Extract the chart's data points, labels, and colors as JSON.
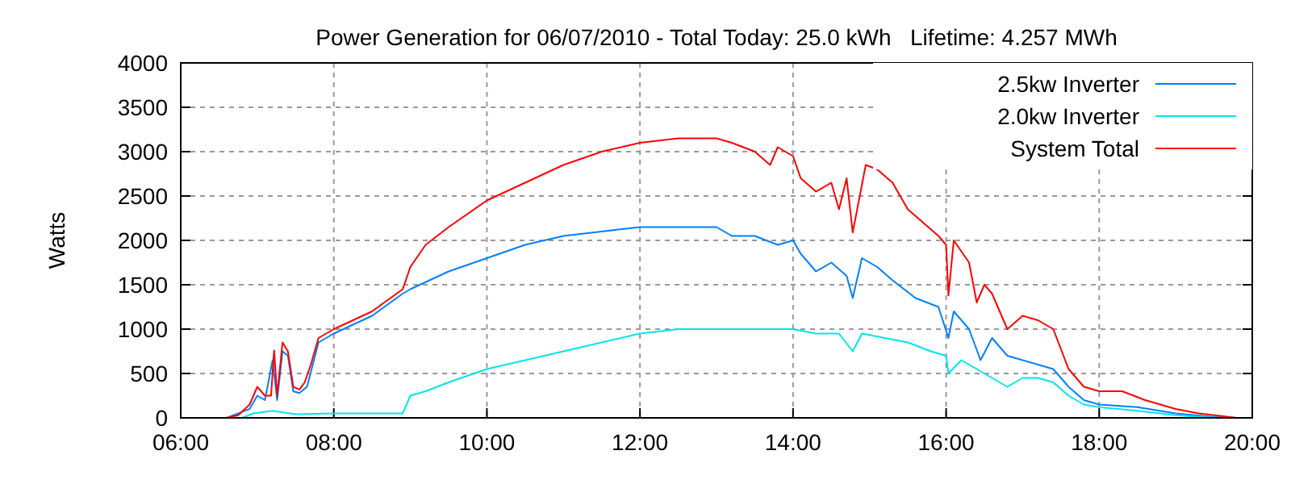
{
  "chart_data": {
    "type": "line",
    "title": "Power Generation for 06/07/2010 - Total Today: 25.0 kWh   Lifetime: 4.257 MWh",
    "ylabel": "Watts",
    "xlim": [
      6,
      20
    ],
    "xticks": [
      {
        "value": 6,
        "label": "06:00"
      },
      {
        "value": 8,
        "label": "08:00"
      },
      {
        "value": 10,
        "label": "10:00"
      },
      {
        "value": 12,
        "label": "12:00"
      },
      {
        "value": 14,
        "label": "14:00"
      },
      {
        "value": 16,
        "label": "16:00"
      },
      {
        "value": 18,
        "label": "18:00"
      },
      {
        "value": 20,
        "label": "20:00"
      }
    ],
    "ylim": [
      0,
      4000
    ],
    "yticks": [
      0,
      500,
      1000,
      1500,
      2000,
      2500,
      3000,
      3500,
      4000
    ],
    "grid": true,
    "legend": "top right",
    "line_style": "solid",
    "marker": "none",
    "series": [
      {
        "name": "2.5kw Inverter",
        "color": "#0080ff",
        "x": [
          6.6,
          6.9,
          7.0,
          7.1,
          7.2,
          7.26,
          7.33,
          7.4,
          7.47,
          7.55,
          7.65,
          7.8,
          8.0,
          8.5,
          8.9,
          9.0,
          9.5,
          10,
          10.5,
          11,
          11.5,
          12,
          12.5,
          13,
          13.2,
          13.5,
          13.8,
          14,
          14.1,
          14.3,
          14.5,
          14.7,
          14.78,
          14.9,
          15.1,
          15.3,
          15.6,
          15.9,
          16.03,
          16.1,
          16.3,
          16.45,
          16.6,
          16.8,
          17.0,
          17.2,
          17.4,
          17.6,
          17.8,
          18.0,
          18.5,
          19.0,
          19.5,
          19.8
        ],
        "values": [
          0,
          100,
          250,
          200,
          650,
          200,
          750,
          700,
          300,
          280,
          350,
          850,
          950,
          1150,
          1400,
          1450,
          1650,
          1800,
          1950,
          2050,
          2100,
          2150,
          2150,
          2150,
          2050,
          2050,
          1950,
          2000,
          1850,
          1650,
          1750,
          1600,
          1350,
          1800,
          1700,
          1550,
          1350,
          1250,
          900,
          1200,
          1000,
          650,
          900,
          700,
          650,
          600,
          550,
          350,
          200,
          150,
          120,
          50,
          10,
          0
        ]
      },
      {
        "name": "2.0kw Inverter",
        "color": "#00e5ee",
        "x": [
          6.8,
          6.95,
          7.2,
          7.5,
          8.0,
          8.9,
          9.0,
          9.2,
          9.5,
          10,
          10.5,
          11,
          11.5,
          12,
          12.5,
          13,
          13.5,
          14,
          14.3,
          14.6,
          14.78,
          14.9,
          15.2,
          15.5,
          15.8,
          16.0,
          16.03,
          16.2,
          16.4,
          16.6,
          16.8,
          17.0,
          17.2,
          17.4,
          17.6,
          17.8,
          18.0,
          18.5,
          19.0,
          19.5
        ],
        "values": [
          0,
          50,
          80,
          40,
          50,
          50,
          250,
          300,
          400,
          550,
          650,
          750,
          850,
          950,
          1000,
          1000,
          1000,
          1000,
          950,
          950,
          750,
          950,
          900,
          850,
          750,
          700,
          500,
          650,
          550,
          450,
          350,
          450,
          450,
          400,
          250,
          150,
          120,
          80,
          30,
          0
        ]
      },
      {
        "name": "System Total",
        "color": "#ff0000",
        "x": [
          6.6,
          6.75,
          6.9,
          7.0,
          7.1,
          7.18,
          7.22,
          7.26,
          7.33,
          7.4,
          7.47,
          7.55,
          7.62,
          7.7,
          7.8,
          8.0,
          8.5,
          8.9,
          9.0,
          9.2,
          9.5,
          10,
          10.5,
          11,
          11.5,
          12,
          12.5,
          13,
          13.2,
          13.5,
          13.7,
          13.8,
          14.0,
          14.1,
          14.3,
          14.5,
          14.6,
          14.7,
          14.78,
          14.95,
          15.1,
          15.3,
          15.5,
          15.7,
          15.9,
          16.0,
          16.03,
          16.1,
          16.3,
          16.4,
          16.5,
          16.6,
          16.8,
          17.0,
          17.2,
          17.4,
          17.6,
          17.8,
          18.0,
          18.3,
          18.6,
          19.0,
          19.3,
          19.6,
          19.8
        ],
        "values": [
          0,
          30,
          150,
          350,
          250,
          250,
          760,
          250,
          850,
          750,
          350,
          320,
          400,
          600,
          900,
          1000,
          1200,
          1450,
          1700,
          1950,
          2150,
          2450,
          2650,
          2850,
          3000,
          3100,
          3150,
          3150,
          3100,
          3000,
          2850,
          3050,
          2950,
          2700,
          2550,
          2650,
          2350,
          2700,
          2090,
          2850,
          2800,
          2650,
          2350,
          2200,
          2050,
          1950,
          1380,
          2000,
          1750,
          1300,
          1500,
          1400,
          1000,
          1150,
          1100,
          1000,
          550,
          350,
          300,
          300,
          200,
          100,
          50,
          20,
          0
        ]
      }
    ]
  }
}
